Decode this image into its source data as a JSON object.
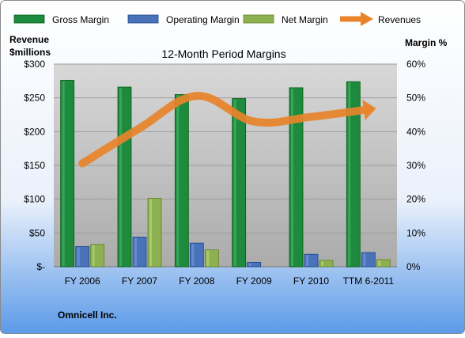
{
  "chart_data": {
    "type": "bar",
    "title": "12-Month Period Margins",
    "company": "Omnicell Inc.",
    "left_axis_label_line1": "Revenue",
    "left_axis_label_line2": "$millions",
    "right_axis_label": "Margin %",
    "categories": [
      "FY 2006",
      "FY 2007",
      "FY 2008",
      "FY 2009",
      "FY 2010",
      "TTM 6-2011"
    ],
    "left_ticks": [
      "$-",
      "$50",
      "$100",
      "$150",
      "$200",
      "$250",
      "$300"
    ],
    "right_ticks": [
      "0%",
      "10%",
      "20%",
      "30%",
      "40%",
      "50%",
      "60%"
    ],
    "ylim_left": [
      0,
      300
    ],
    "ylim_right": [
      0,
      60
    ],
    "series": [
      {
        "name": "Gross Margin",
        "kind": "bar",
        "axis": "right",
        "color": "#1e8a3e",
        "values": [
          55.2,
          53.2,
          51.0,
          49.8,
          53.0,
          54.8
        ]
      },
      {
        "name": "Operating Margin",
        "kind": "bar",
        "axis": "right",
        "color": "#4a72b8",
        "values": [
          6.0,
          8.8,
          7.0,
          1.3,
          3.7,
          4.2
        ]
      },
      {
        "name": "Net Margin",
        "kind": "bar",
        "axis": "right",
        "color": "#8db050",
        "values": [
          6.6,
          20.3,
          5.0,
          0.0,
          1.9,
          2.1
        ]
      },
      {
        "name": "Revenues",
        "kind": "line",
        "axis": "left",
        "color": "#e8832a",
        "values": [
          153,
          205,
          253,
          215,
          222,
          233
        ]
      }
    ],
    "grid": true,
    "legend_position": "top"
  }
}
